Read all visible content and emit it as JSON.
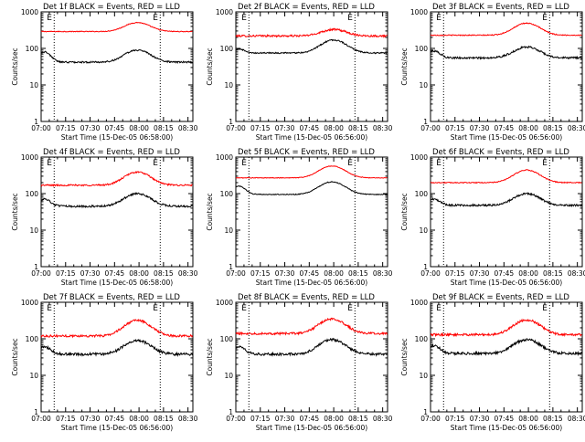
{
  "figure": {
    "background": "#ffffff",
    "series_colors": {
      "events": "#000000",
      "lld": "#ff0000"
    },
    "ylabel": "Counts/sec",
    "xlabels": [
      "Start Time (15-Dec-05 06:58:00)",
      "Start Time (15-Dec-05 06:56:00)",
      "Start Time (15-Dec-05 06:56:00)",
      "Start Time (15-Dec-05 06:58:00)",
      "Start Time (15-Dec-05 06:56:00)",
      "Start Time (15-Dec-05 06:56:00)",
      "Start Time (15-Dec-05 06:56:00)",
      "Start Time (15-Dec-05 06:56:00)",
      "Start Time (15-Dec-05 06:56:00)"
    ],
    "xticks": [
      "07:00",
      "07:15",
      "07:30",
      "07:45",
      "08:00",
      "08:15",
      "08:30"
    ],
    "yticks": [
      "1",
      "10",
      "100",
      "1000"
    ],
    "marker_labels": [
      "E",
      "E"
    ]
  },
  "chart_data": [
    {
      "type": "line",
      "title": "Det 1f BLACK = Events, RED = LLD",
      "yscale": "log",
      "ylim": [
        1,
        1000
      ],
      "xlim": [
        "07:00",
        "08:33"
      ],
      "x_markers": [
        "07:08",
        "08:13"
      ],
      "lld": {
        "base": 290,
        "peak": 510,
        "peak_time": "07:59",
        "noise": 0.025
      },
      "events": {
        "base": 42,
        "peak": 90,
        "peak_time": "07:59",
        "noise": 0.05,
        "early": 80
      }
    },
    {
      "type": "line",
      "title": "Det 2f BLACK = Events, RED = LLD",
      "yscale": "log",
      "ylim": [
        1,
        1000
      ],
      "xlim": [
        "07:00",
        "08:33"
      ],
      "x_markers": [
        "07:08",
        "08:13"
      ],
      "lld": {
        "base": 220,
        "peak": 330,
        "peak_time": "08:00",
        "noise": 0.06
      },
      "events": {
        "base": 75,
        "peak": 170,
        "peak_time": "08:00",
        "noise": 0.04,
        "early": 95
      }
    },
    {
      "type": "line",
      "title": "Det 3f BLACK = Events, RED = LLD",
      "yscale": "log",
      "ylim": [
        1,
        1000
      ],
      "xlim": [
        "07:00",
        "08:33"
      ],
      "x_markers": [
        "07:08",
        "08:13"
      ],
      "lld": {
        "base": 230,
        "peak": 490,
        "peak_time": "07:59",
        "noise": 0.03
      },
      "events": {
        "base": 55,
        "peak": 110,
        "peak_time": "07:59",
        "noise": 0.06,
        "early": 85
      }
    },
    {
      "type": "line",
      "title": "Det 4f BLACK = Events, RED = LLD",
      "yscale": "log",
      "ylim": [
        1,
        1000
      ],
      "xlim": [
        "07:00",
        "08:33"
      ],
      "x_markers": [
        "07:08",
        "08:13"
      ],
      "lld": {
        "base": 170,
        "peak": 390,
        "peak_time": "07:59",
        "noise": 0.05
      },
      "events": {
        "base": 45,
        "peak": 100,
        "peak_time": "07:59",
        "noise": 0.06,
        "early": 70
      }
    },
    {
      "type": "line",
      "title": "Det 5f BLACK = Events, RED = LLD",
      "yscale": "log",
      "ylim": [
        1,
        1000
      ],
      "xlim": [
        "07:00",
        "08:33"
      ],
      "x_markers": [
        "07:08",
        "08:13"
      ],
      "lld": {
        "base": 270,
        "peak": 570,
        "peak_time": "07:59",
        "noise": 0.02
      },
      "events": {
        "base": 95,
        "peak": 210,
        "peak_time": "07:59",
        "noise": 0.025,
        "early": 160
      }
    },
    {
      "type": "line",
      "title": "Det 6f BLACK = Events, RED = LLD",
      "yscale": "log",
      "ylim": [
        1,
        1000
      ],
      "xlim": [
        "07:00",
        "08:33"
      ],
      "x_markers": [
        "07:08",
        "08:13"
      ],
      "lld": {
        "base": 200,
        "peak": 440,
        "peak_time": "07:59",
        "noise": 0.03
      },
      "events": {
        "base": 48,
        "peak": 100,
        "peak_time": "07:59",
        "noise": 0.06,
        "early": 70
      }
    },
    {
      "type": "line",
      "title": "Det 7f BLACK = Events, RED = LLD",
      "yscale": "log",
      "ylim": [
        1,
        1000
      ],
      "xlim": [
        "07:00",
        "08:33"
      ],
      "x_markers": [
        "07:08",
        "08:13"
      ],
      "lld": {
        "base": 120,
        "peak": 320,
        "peak_time": "07:59",
        "noise": 0.07
      },
      "events": {
        "base": 38,
        "peak": 90,
        "peak_time": "07:59",
        "noise": 0.08,
        "early": 60
      }
    },
    {
      "type": "line",
      "title": "Det 8f BLACK = Events, RED = LLD",
      "yscale": "log",
      "ylim": [
        1,
        1000
      ],
      "xlim": [
        "07:00",
        "08:33"
      ],
      "x_markers": [
        "07:08",
        "08:13"
      ],
      "lld": {
        "base": 140,
        "peak": 350,
        "peak_time": "07:59",
        "noise": 0.07
      },
      "events": {
        "base": 38,
        "peak": 95,
        "peak_time": "07:59",
        "noise": 0.08,
        "early": 60
      }
    },
    {
      "type": "line",
      "title": "Det 9f BLACK = Events, RED = LLD",
      "yscale": "log",
      "ylim": [
        1,
        1000
      ],
      "xlim": [
        "07:00",
        "08:33"
      ],
      "x_markers": [
        "07:08",
        "08:13"
      ],
      "lld": {
        "base": 130,
        "peak": 330,
        "peak_time": "07:59",
        "noise": 0.07
      },
      "events": {
        "base": 40,
        "peak": 95,
        "peak_time": "07:59",
        "noise": 0.08,
        "early": 65
      }
    }
  ]
}
